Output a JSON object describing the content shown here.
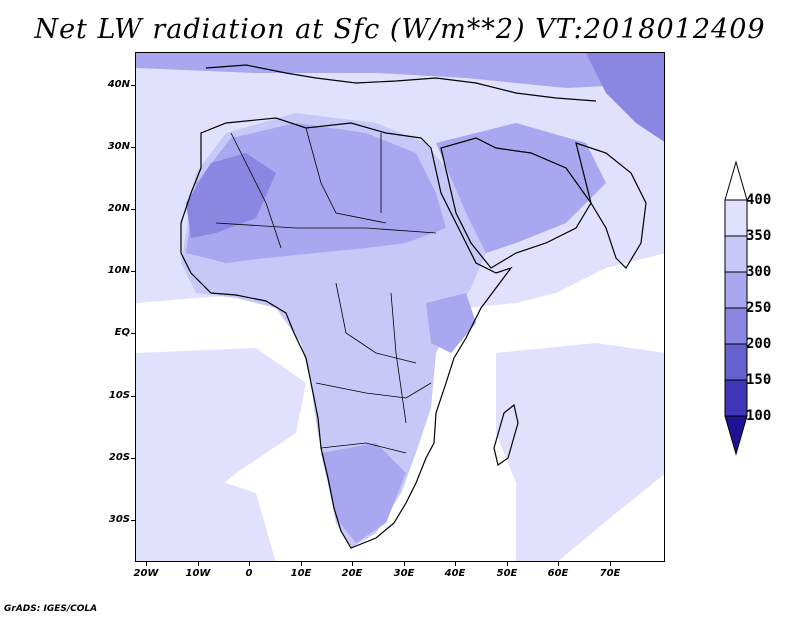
{
  "title": "Net LW radiation at Sfc (W/m**2) VT:2018012409",
  "footer": "GrADS: IGES/COLA",
  "map": {
    "projection": "lat-lon",
    "lon_range": [
      -23,
      80
    ],
    "lat_range": [
      -37,
      45
    ],
    "lat_ticks": [
      "40N",
      "30N",
      "20N",
      "10N",
      "EQ",
      "10S",
      "20S",
      "30S"
    ],
    "lon_ticks": [
      "20W",
      "10W",
      "0",
      "10E",
      "20E",
      "30E",
      "40E",
      "50E",
      "60E",
      "70E"
    ]
  },
  "colorbar": {
    "levels": [
      "400",
      "350",
      "300",
      "250",
      "200",
      "150",
      "100"
    ],
    "colors": [
      "#e1e1fd",
      "#c8c8f8",
      "#a9a7f0",
      "#8a86e2",
      "#6561cf",
      "#3f37b8",
      "#1f1094"
    ],
    "top_arrow_color": "#ffffff",
    "bottom_arrow_color": "#1f1094"
  },
  "field_colors": {
    "low": "#ffffff",
    "light": "#e1e1fd",
    "mid": "#c8c8f8",
    "high": "#a9a7f0",
    "very_high": "#8a86e2",
    "extreme": "#6561cf"
  }
}
